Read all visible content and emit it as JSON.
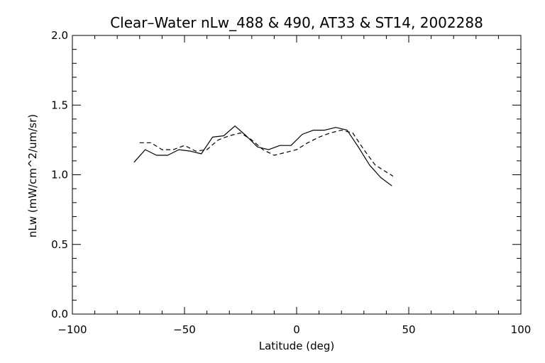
{
  "chart_data": {
    "type": "line",
    "title": "Clear–Water nLw_488 & 490, AT33 & ST14, 2002288",
    "xlabel": "Latitude (deg)",
    "ylabel": "nLw (mW/cm^2/um/sr)",
    "xlim": [
      -100,
      100
    ],
    "ylim": [
      0.0,
      2.0
    ],
    "xticks": [
      -100,
      -50,
      0,
      50,
      100
    ],
    "xtick_labels": [
      "−100",
      "−50",
      "0",
      "50",
      "100"
    ],
    "yticks": [
      0.0,
      0.5,
      1.0,
      1.5,
      2.0
    ],
    "ytick_labels": [
      "0.0",
      "0.5",
      "1.0",
      "1.5",
      "2.0"
    ],
    "grid": false,
    "series": [
      {
        "line_style": "solid",
        "color": "#000000",
        "x": [
          -72.5,
          -67.5,
          -62.5,
          -57.5,
          -52.5,
          -47.5,
          -42.5,
          -37.5,
          -32.5,
          -27.5,
          -22.5,
          -17.5,
          -12.5,
          -7.5,
          -2.5,
          2.5,
          7.5,
          12.5,
          17.5,
          22.5,
          27.5,
          32.5,
          37.5,
          42.5
        ],
        "y": [
          1.09,
          1.18,
          1.14,
          1.14,
          1.18,
          1.17,
          1.15,
          1.27,
          1.28,
          1.35,
          1.28,
          1.2,
          1.18,
          1.21,
          1.21,
          1.29,
          1.32,
          1.32,
          1.34,
          1.32,
          1.2,
          1.07,
          0.98,
          0.92
        ]
      },
      {
        "line_style": "dashed",
        "color": "#000000",
        "x": [
          -70,
          -65,
          -60,
          -55,
          -50,
          -45,
          -40,
          -35,
          -30,
          -25,
          -20,
          -15,
          -10,
          -5,
          0,
          5,
          10,
          15,
          20,
          25,
          30,
          35,
          40,
          43
        ],
        "y": [
          1.23,
          1.23,
          1.18,
          1.18,
          1.21,
          1.17,
          1.18,
          1.25,
          1.28,
          1.3,
          1.25,
          1.18,
          1.14,
          1.16,
          1.18,
          1.23,
          1.27,
          1.3,
          1.32,
          1.3,
          1.18,
          1.07,
          1.02,
          0.99
        ]
      }
    ]
  }
}
